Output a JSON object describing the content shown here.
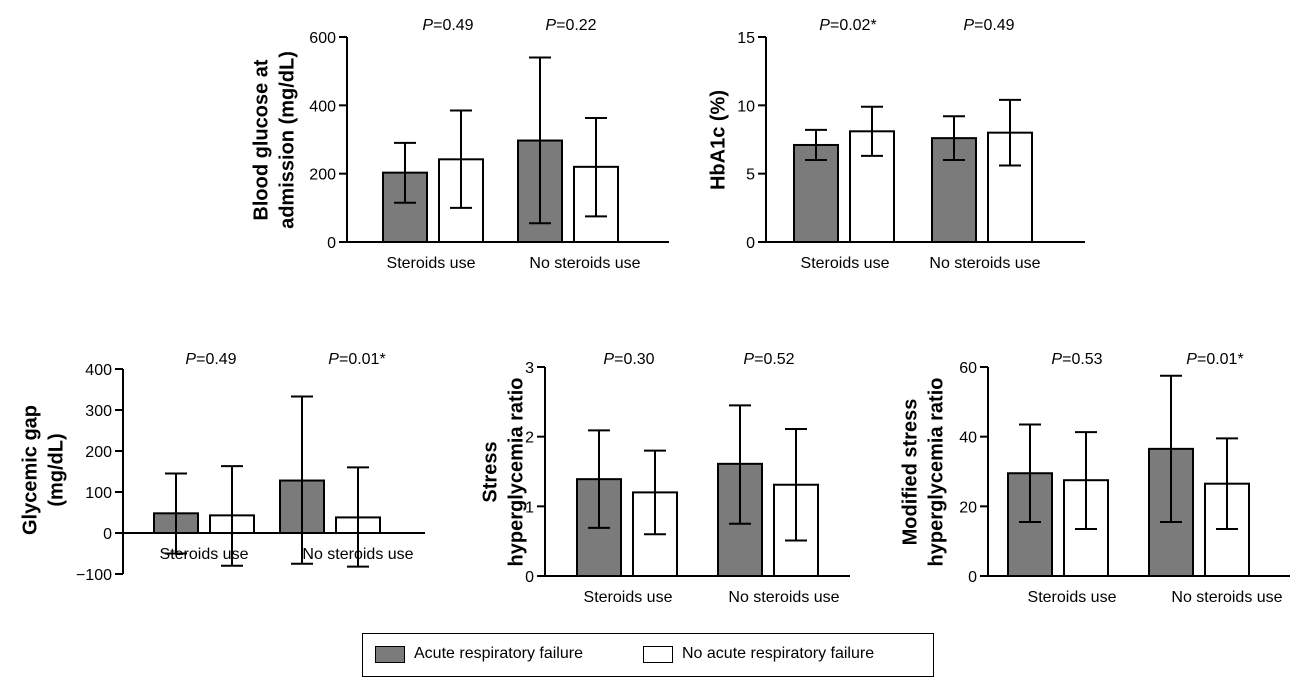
{
  "colors": {
    "filled": "#7b7b7b",
    "open": "#ffffff",
    "stroke": "#000000"
  },
  "legend": {
    "items": [
      {
        "label": "Acute respiratory failure",
        "swatch": "filled"
      },
      {
        "label": "No acute respiratory failure",
        "swatch": "open"
      }
    ]
  },
  "chart_data": [
    {
      "type": "bar",
      "ylabel": [
        "Blood glucose at",
        "admission (mg/dL)"
      ],
      "ylim": [
        0,
        600
      ],
      "yticks": [
        "0",
        "200",
        "400",
        "600"
      ],
      "categories": [
        "Steroids use",
        "No steroids use"
      ],
      "p_values": [
        "0.49",
        "0.22"
      ],
      "series": [
        {
          "name": "Acute respiratory failure",
          "values": [
            203,
            297
          ],
          "err_low": [
            115,
            55
          ],
          "err_high": [
            290,
            540
          ]
        },
        {
          "name": "No acute respiratory failure",
          "values": [
            242,
            220
          ],
          "err_low": [
            100,
            75
          ],
          "err_high": [
            385,
            363
          ]
        }
      ]
    },
    {
      "type": "bar",
      "ylabel": [
        "HbA1c (%)"
      ],
      "ylim": [
        0,
        15
      ],
      "yticks": [
        "0",
        "5",
        "10",
        "15"
      ],
      "categories": [
        "Steroids use",
        "No steroids use"
      ],
      "p_values": [
        "0.02*",
        "0.49"
      ],
      "series": [
        {
          "name": "Acute respiratory failure",
          "values": [
            7.1,
            7.6
          ],
          "err_low": [
            6.0,
            6.0
          ],
          "err_high": [
            8.2,
            9.2
          ]
        },
        {
          "name": "No acute respiratory failure",
          "values": [
            8.1,
            8.0
          ],
          "err_low": [
            6.3,
            5.6
          ],
          "err_high": [
            9.9,
            10.4
          ]
        }
      ]
    },
    {
      "type": "bar",
      "ylabel": [
        "Glycemic gap",
        "(mg/dL)"
      ],
      "ylim": [
        -100,
        400
      ],
      "yticks": [
        "−100",
        "0",
        "100",
        "200",
        "300",
        "400"
      ],
      "categories": [
        "Steroids use",
        "No steroids use"
      ],
      "p_values": [
        "0.49",
        "0.01*"
      ],
      "series": [
        {
          "name": "Acute respiratory failure",
          "values": [
            48,
            128
          ],
          "err_low": [
            -50,
            -75
          ],
          "err_high": [
            145,
            333
          ]
        },
        {
          "name": "No acute respiratory failure",
          "values": [
            43,
            38
          ],
          "err_low": [
            -80,
            -82
          ],
          "err_high": [
            163,
            160
          ]
        }
      ]
    },
    {
      "type": "bar",
      "ylabel": [
        "Stress",
        "hyperglycemia ratio"
      ],
      "ylim": [
        0,
        3
      ],
      "yticks": [
        "0",
        "1",
        "2",
        "3"
      ],
      "categories": [
        "Steroids use",
        "No steroids use"
      ],
      "p_values": [
        "0.30",
        "0.52"
      ],
      "series": [
        {
          "name": "Acute respiratory failure",
          "values": [
            1.39,
            1.61
          ],
          "err_low": [
            0.69,
            0.75
          ],
          "err_high": [
            2.09,
            2.45
          ]
        },
        {
          "name": "No acute respiratory failure",
          "values": [
            1.2,
            1.31
          ],
          "err_low": [
            0.6,
            0.51
          ],
          "err_high": [
            1.8,
            2.11
          ]
        }
      ]
    },
    {
      "type": "bar",
      "ylabel": [
        "Modified stress",
        "hyperglycemia ratio"
      ],
      "ylim": [
        0,
        60
      ],
      "yticks": [
        "0",
        "20",
        "40",
        "60"
      ],
      "categories": [
        "Steroids use",
        "No steroids use"
      ],
      "p_values": [
        "0.53",
        "0.01*"
      ],
      "series": [
        {
          "name": "Acute respiratory failure",
          "values": [
            29.5,
            36.5
          ],
          "err_low": [
            15.5,
            15.5
          ],
          "err_high": [
            43.5,
            57.5
          ]
        },
        {
          "name": "No acute respiratory failure",
          "values": [
            27.5,
            26.5
          ],
          "err_low": [
            13.5,
            13.5
          ],
          "err_high": [
            41.3,
            39.5
          ]
        }
      ]
    }
  ]
}
